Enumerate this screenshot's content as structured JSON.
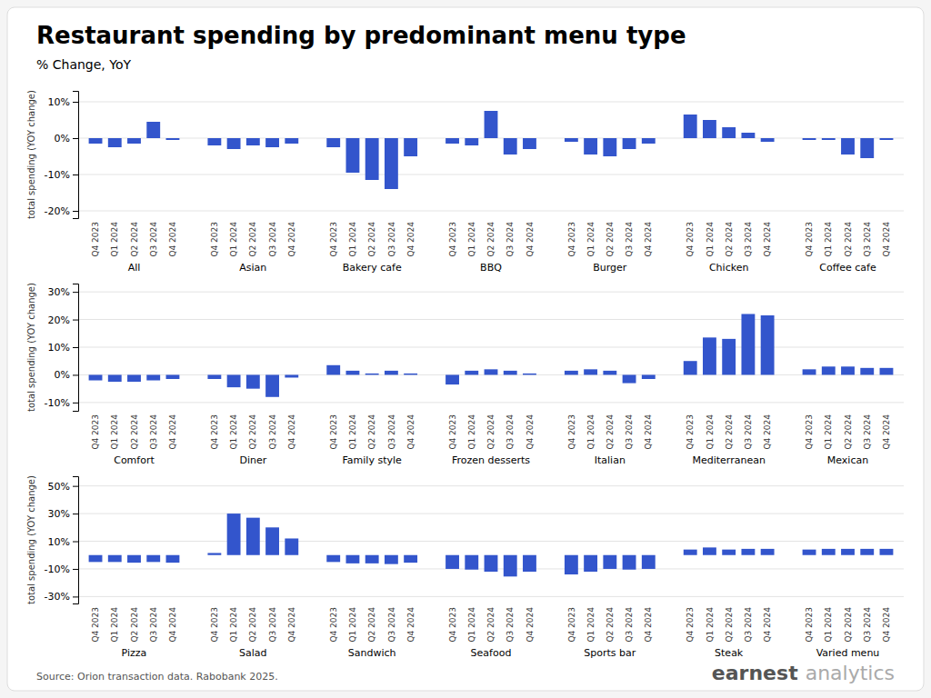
{
  "chart_data": [
    {
      "type": "bar",
      "title": "Restaurant spending by predominant menu type",
      "subtitle": "% Change, YoY",
      "ylabel": "total spending (YOY change)",
      "color": "#3355cc",
      "grid": true,
      "categories": [
        "Q4 2023",
        "Q1 2024",
        "Q2 2024",
        "Q3 2024",
        "Q4 2024"
      ],
      "ylim": [
        -22,
        13
      ],
      "yticks": [
        {
          "value": -20,
          "label": "-20%"
        },
        {
          "value": -10,
          "label": "-10%"
        },
        {
          "value": 0,
          "label": "0%"
        },
        {
          "value": 10,
          "label": "10%"
        }
      ],
      "series": [
        {
          "name": "All",
          "values": [
            -1.5,
            -2.5,
            -1.5,
            4.5,
            -0.5
          ]
        },
        {
          "name": "Asian",
          "values": [
            -2.0,
            -3.0,
            -2.0,
            -2.5,
            -1.5
          ]
        },
        {
          "name": "Bakery cafe",
          "values": [
            -2.5,
            -9.5,
            -11.5,
            -14.0,
            -5.0
          ]
        },
        {
          "name": "BBQ",
          "values": [
            -1.5,
            -2.0,
            7.5,
            -4.5,
            -3.0
          ]
        },
        {
          "name": "Burger",
          "values": [
            -1.0,
            -4.5,
            -5.0,
            -3.0,
            -1.5
          ]
        },
        {
          "name": "Chicken",
          "values": [
            6.5,
            5.0,
            3.0,
            1.5,
            -1.0
          ]
        },
        {
          "name": "Coffee cafe",
          "values": [
            -0.5,
            -0.5,
            -4.5,
            -5.5,
            -0.5
          ]
        }
      ]
    },
    {
      "type": "bar",
      "ylabel": "total spending (YOY change)",
      "color": "#3355cc",
      "grid": true,
      "categories": [
        "Q4 2023",
        "Q1 2024",
        "Q2 2024",
        "Q3 2024",
        "Q4 2024"
      ],
      "ylim": [
        -13,
        33
      ],
      "yticks": [
        {
          "value": -10,
          "label": "-10%"
        },
        {
          "value": 0,
          "label": "0%"
        },
        {
          "value": 10,
          "label": "10%"
        },
        {
          "value": 20,
          "label": "20%"
        },
        {
          "value": 30,
          "label": "30%"
        }
      ],
      "series": [
        {
          "name": "Comfort",
          "values": [
            -2.0,
            -2.5,
            -2.5,
            -2.0,
            -1.5
          ]
        },
        {
          "name": "Diner",
          "values": [
            -1.5,
            -4.5,
            -5.0,
            -8.0,
            -1.0
          ]
        },
        {
          "name": "Family style",
          "values": [
            3.5,
            1.5,
            0.5,
            1.5,
            0.5
          ]
        },
        {
          "name": "Frozen desserts",
          "values": [
            -3.5,
            1.5,
            2.0,
            1.5,
            0.5
          ]
        },
        {
          "name": "Italian",
          "values": [
            1.5,
            2.0,
            1.5,
            -3.0,
            -1.5
          ]
        },
        {
          "name": "Mediterranean",
          "values": [
            5.0,
            13.5,
            13.0,
            22.0,
            21.5
          ]
        },
        {
          "name": "Mexican",
          "values": [
            2.0,
            3.0,
            3.0,
            2.5,
            2.5
          ]
        }
      ]
    },
    {
      "type": "bar",
      "ylabel": "total spending (YOY change)",
      "color": "#3355cc",
      "grid": true,
      "categories": [
        "Q4 2023",
        "Q1 2024",
        "Q2 2024",
        "Q3 2024",
        "Q4 2024"
      ],
      "ylim": [
        -35,
        57
      ],
      "yticks": [
        {
          "value": -30,
          "label": "-30%"
        },
        {
          "value": -10,
          "label": "-10%"
        },
        {
          "value": 10,
          "label": "10%"
        },
        {
          "value": 30,
          "label": "30%"
        },
        {
          "value": 50,
          "label": "50%"
        }
      ],
      "series": [
        {
          "name": "Pizza",
          "values": [
            -5.0,
            -5.0,
            -5.5,
            -5.0,
            -5.5
          ]
        },
        {
          "name": "Salad",
          "values": [
            1.5,
            30.0,
            27.0,
            20.0,
            12.0
          ]
        },
        {
          "name": "Sandwich",
          "values": [
            -5.0,
            -6.0,
            -6.0,
            -6.5,
            -5.5
          ]
        },
        {
          "name": "Seafood",
          "values": [
            -10.0,
            -10.5,
            -12.0,
            -15.5,
            -12.0
          ]
        },
        {
          "name": "Sports bar",
          "values": [
            -14.0,
            -12.0,
            -10.0,
            -10.5,
            -10.0
          ]
        },
        {
          "name": "Steak",
          "values": [
            4.0,
            5.5,
            4.0,
            4.5,
            4.5
          ]
        },
        {
          "name": "Varied menu",
          "values": [
            4.0,
            4.5,
            4.5,
            4.5,
            4.5
          ]
        }
      ],
      "annotations": [
        "Source: Orion transaction data. Rabobank 2025.",
        "earnest",
        "analytics"
      ]
    }
  ]
}
